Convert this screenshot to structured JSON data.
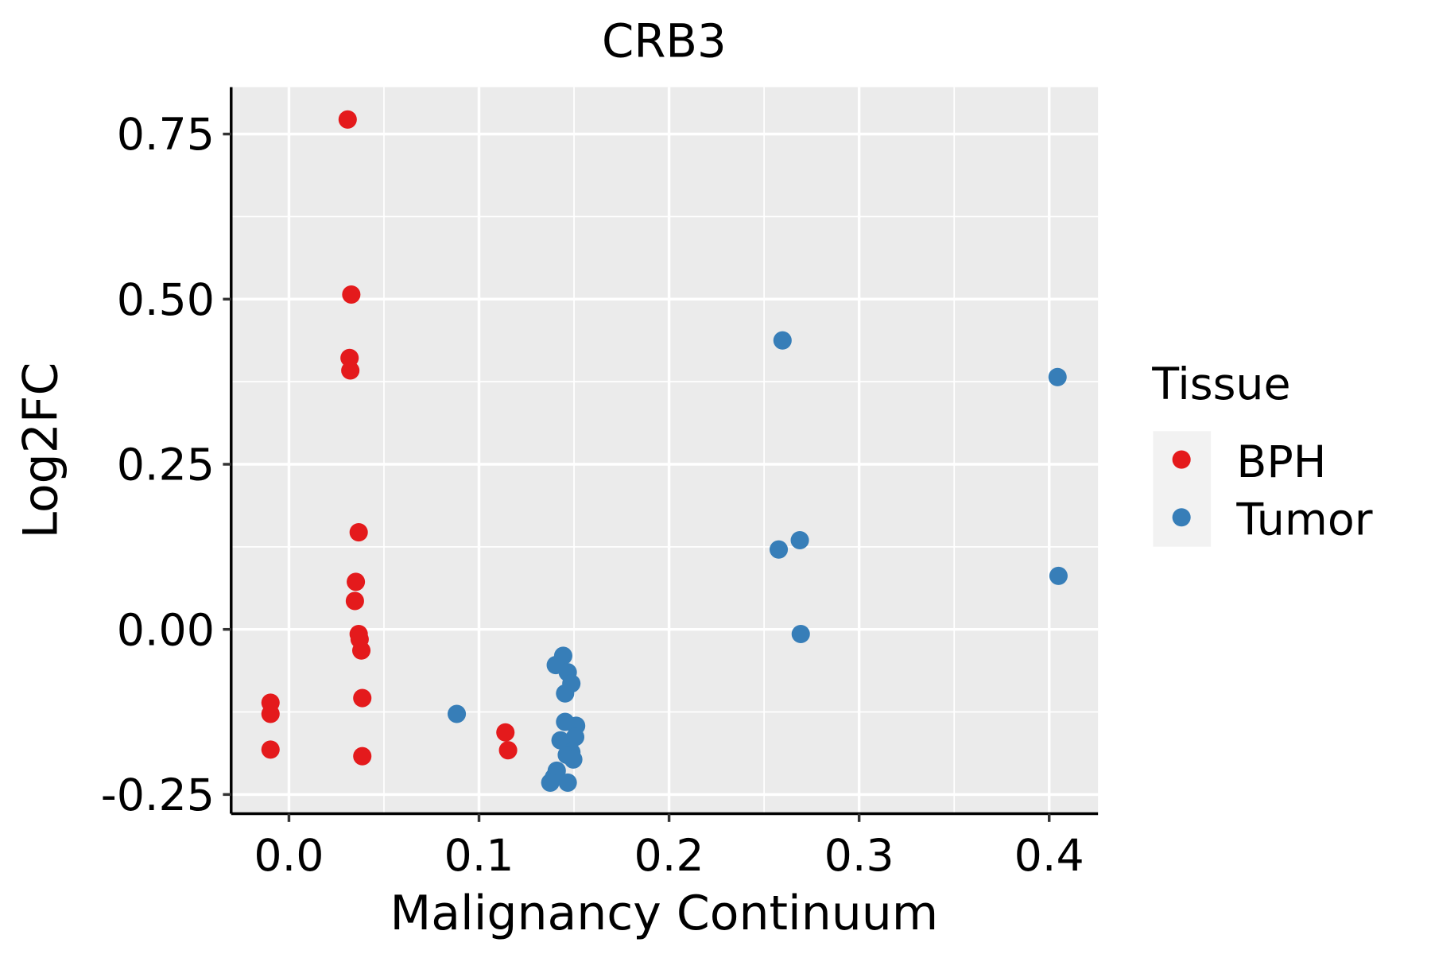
{
  "chart_data": {
    "type": "scatter",
    "title": "CRB3",
    "xlabel": "Malignancy Continuum",
    "ylabel": "Log2FC",
    "xlim": [
      -0.0304,
      0.4257
    ],
    "ylim": [
      -0.279,
      0.821
    ],
    "xticks": [
      0.0,
      0.1,
      0.2,
      0.3,
      0.4
    ],
    "xtick_labels": [
      "0.0",
      "0.1",
      "0.2",
      "0.3",
      "0.4"
    ],
    "yticks": [
      0.75,
      0.5,
      0.25,
      0.0,
      -0.25
    ],
    "ytick_labels": [
      "0.75",
      "0.50",
      "0.25",
      "0.00",
      "-0.25"
    ],
    "grid": true,
    "legend": {
      "title": "Tissue",
      "placement": "right",
      "entries": [
        "BPH",
        "Tumor"
      ]
    },
    "colors": {
      "BPH": "#E41A1C",
      "Tumor": "#377EB8",
      "panel": "#EBEBEB"
    },
    "series": [
      {
        "name": "BPH",
        "points": [
          [
            0.0309,
            0.772
          ],
          [
            0.0328,
            0.507
          ],
          [
            0.0319,
            0.411
          ],
          [
            0.0323,
            0.392
          ],
          [
            0.0367,
            0.147
          ],
          [
            0.0352,
            0.072
          ],
          [
            0.0347,
            0.043
          ],
          [
            0.0367,
            -0.007
          ],
          [
            0.0372,
            -0.015
          ],
          [
            0.0381,
            -0.032
          ],
          [
            0.0386,
            -0.104
          ],
          [
            0.0386,
            -0.192
          ],
          [
            -0.0097,
            -0.111
          ],
          [
            -0.0097,
            -0.128
          ],
          [
            -0.0097,
            -0.182
          ],
          [
            0.1139,
            -0.156
          ],
          [
            0.1153,
            -0.183
          ]
        ]
      },
      {
        "name": "Tumor",
        "points": [
          [
            0.2597,
            0.4375
          ],
          [
            0.4044,
            0.382
          ],
          [
            0.2577,
            0.121
          ],
          [
            0.2688,
            0.135
          ],
          [
            0.4049,
            0.081
          ],
          [
            0.2693,
            -0.007
          ],
          [
            0.0883,
            -0.128
          ],
          [
            0.1443,
            -0.04
          ],
          [
            0.1404,
            -0.054
          ],
          [
            0.1467,
            -0.065
          ],
          [
            0.1486,
            -0.082
          ],
          [
            0.1453,
            -0.097
          ],
          [
            0.1453,
            -0.14
          ],
          [
            0.1511,
            -0.146
          ],
          [
            0.1506,
            -0.163
          ],
          [
            0.1429,
            -0.168
          ],
          [
            0.1486,
            -0.186
          ],
          [
            0.1462,
            -0.19
          ],
          [
            0.1496,
            -0.197
          ],
          [
            0.1409,
            -0.214
          ],
          [
            0.1394,
            -0.224
          ],
          [
            0.1375,
            -0.232
          ],
          [
            0.1467,
            -0.232
          ]
        ]
      }
    ]
  }
}
